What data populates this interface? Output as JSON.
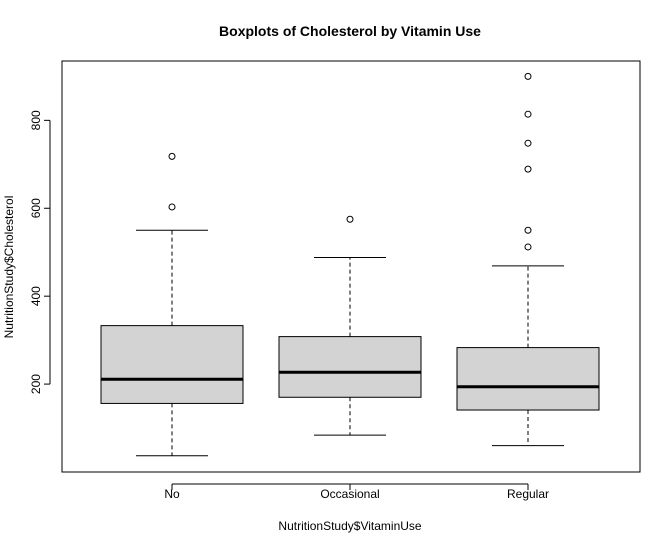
{
  "chart_data": {
    "type": "boxplot",
    "title": "Boxplots of Cholesterol by Vitamin Use",
    "xlabel": "NutritionStudy$VitaminUse",
    "ylabel": "NutritionStudy$Cholesterol",
    "ylim": [
      0,
      935
    ],
    "yticks": [
      200,
      400,
      600,
      800
    ],
    "grid": false,
    "legend": "none",
    "box_fill": "#d3d3d3",
    "categories": [
      "No",
      "Occasional",
      "Regular"
    ],
    "boxes": [
      {
        "category": "No",
        "whisker_low": 37,
        "q1": 156,
        "median": 211,
        "q3": 333,
        "whisker_high": 550,
        "outliers": [
          603,
          718
        ]
      },
      {
        "category": "Occasional",
        "whisker_low": 84,
        "q1": 170,
        "median": 227,
        "q3": 308,
        "whisker_high": 488,
        "outliers": [
          575
        ]
      },
      {
        "category": "Regular",
        "whisker_low": 60,
        "q1": 141,
        "median": 194,
        "q3": 283,
        "whisker_high": 469,
        "outliers": [
          512,
          550,
          689,
          748,
          814,
          900
        ]
      }
    ]
  }
}
